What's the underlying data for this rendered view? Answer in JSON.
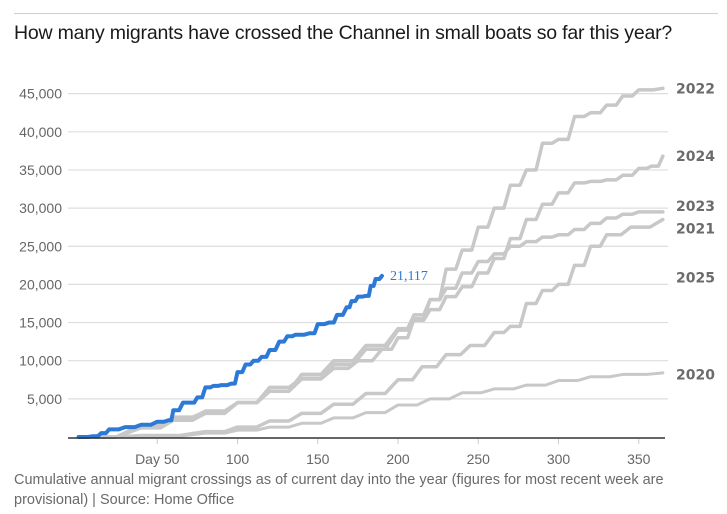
{
  "title": "How many migrants have crossed the Channel in small boats so far this year?",
  "caption": "Cumulative annual migrant crossings as of current day into the year (figures for most recent week are provisional) | Source: Home Office",
  "colors": {
    "highlight": "#2d7ad6",
    "other": "#c8c8c8",
    "grid": "#dddddd",
    "axis": "#333333",
    "label": "#6b6b6b"
  },
  "chart_data": {
    "type": "line",
    "title": "How many migrants have crossed the Channel in small boats so far this year?",
    "xlabel": "",
    "ylabel": "",
    "xlim": [
      0,
      365
    ],
    "ylim": [
      0,
      47000
    ],
    "grid": true,
    "legend": "direct labels at right end of lines",
    "x_ticks": [
      50,
      100,
      150,
      200,
      250,
      300,
      350
    ],
    "x_tick_labels": [
      "Day 50",
      "100",
      "150",
      "200",
      "250",
      "300",
      "350"
    ],
    "y_ticks": [
      5000,
      10000,
      15000,
      20000,
      25000,
      30000,
      35000,
      40000,
      45000
    ],
    "y_tick_labels": [
      "5,000",
      "10,000",
      "15,000",
      "20,000",
      "25,000",
      "30,000",
      "35,000",
      "40,000",
      "45,000"
    ],
    "series": [
      {
        "name": "2020",
        "highlight": false,
        "x": [
          1,
          40,
          80,
          100,
          120,
          140,
          160,
          180,
          200,
          220,
          240,
          260,
          280,
          300,
          320,
          340,
          365
        ],
        "y": [
          0,
          100,
          500,
          900,
          1300,
          1800,
          2500,
          3200,
          4200,
          5000,
          5800,
          6300,
          6800,
          7400,
          7900,
          8200,
          8400
        ]
      },
      {
        "name": "2021",
        "highlight": false,
        "x": [
          1,
          40,
          80,
          100,
          120,
          140,
          160,
          180,
          200,
          215,
          230,
          245,
          260,
          270,
          280,
          290,
          300,
          310,
          320,
          330,
          345,
          365
        ],
        "y": [
          0,
          200,
          700,
          1300,
          2100,
          3100,
          4300,
          5700,
          7500,
          9200,
          10800,
          12000,
          13700,
          14500,
          17500,
          19200,
          20000,
          22500,
          25000,
          26500,
          27500,
          28500
        ]
      },
      {
        "name": "2022",
        "highlight": false,
        "x": [
          1,
          40,
          60,
          80,
          100,
          120,
          140,
          160,
          175,
          190,
          200,
          210,
          220,
          230,
          240,
          250,
          260,
          270,
          280,
          290,
          300,
          310,
          320,
          330,
          340,
          350,
          365
        ],
        "y": [
          0,
          1500,
          2600,
          3300,
          4500,
          6000,
          7600,
          9000,
          10000,
          11500,
          13000,
          15500,
          18000,
          22000,
          24500,
          27500,
          30000,
          33000,
          35000,
          38500,
          39000,
          42000,
          42500,
          43500,
          44700,
          45500,
          45700
        ]
      },
      {
        "name": "2023",
        "highlight": false,
        "x": [
          1,
          40,
          60,
          80,
          100,
          120,
          140,
          160,
          180,
          200,
          210,
          220,
          230,
          240,
          250,
          260,
          270,
          280,
          290,
          300,
          310,
          320,
          330,
          340,
          350,
          365
        ],
        "y": [
          0,
          1500,
          2500,
          3400,
          4500,
          6000,
          8200,
          10000,
          12000,
          14200,
          16000,
          18000,
          19500,
          21500,
          23000,
          24000,
          25000,
          25600,
          26200,
          26500,
          27200,
          28000,
          28700,
          29200,
          29500,
          29500
        ]
      },
      {
        "name": "2024",
        "highlight": false,
        "x": [
          1,
          40,
          60,
          80,
          100,
          120,
          140,
          160,
          180,
          200,
          210,
          220,
          230,
          240,
          250,
          260,
          270,
          280,
          290,
          300,
          310,
          320,
          330,
          340,
          350,
          358,
          365
        ],
        "y": [
          0,
          1200,
          2200,
          3100,
          4500,
          6500,
          7700,
          9500,
          11500,
          14000,
          15300,
          16700,
          18400,
          19700,
          21500,
          23400,
          26000,
          28500,
          30500,
          32000,
          33300,
          33500,
          33700,
          34300,
          35200,
          35500,
          36800
        ]
      },
      {
        "name": "2025",
        "highlight": true,
        "x": [
          1,
          10,
          15,
          20,
          30,
          40,
          50,
          57,
          60,
          66,
          70,
          75,
          80,
          85,
          90,
          96,
          100,
          105,
          110,
          115,
          120,
          126,
          131,
          136,
          145,
          150,
          157,
          162,
          168,
          171,
          175,
          180,
          183,
          186,
          190
        ],
        "y": [
          0,
          100,
          500,
          1000,
          1300,
          1600,
          2000,
          2200,
          3500,
          4500,
          4500,
          5200,
          6500,
          6700,
          6800,
          7000,
          8500,
          9500,
          10000,
          10500,
          11400,
          12500,
          13200,
          13400,
          13600,
          14800,
          15000,
          16000,
          17000,
          17800,
          18400,
          18500,
          19800,
          20700,
          21117
        ]
      }
    ],
    "annotations": [
      {
        "series": "2025",
        "text": "21,117",
        "x": 190,
        "y": 21117
      }
    ],
    "end_labels": [
      {
        "text": "2022",
        "y": 45700
      },
      {
        "text": "2024",
        "y": 36800
      },
      {
        "text": "2023",
        "y": 30300
      },
      {
        "text": "2021",
        "y": 27300
      },
      {
        "text": "2025",
        "y": 20900
      },
      {
        "text": "2020",
        "y": 8200
      }
    ]
  }
}
